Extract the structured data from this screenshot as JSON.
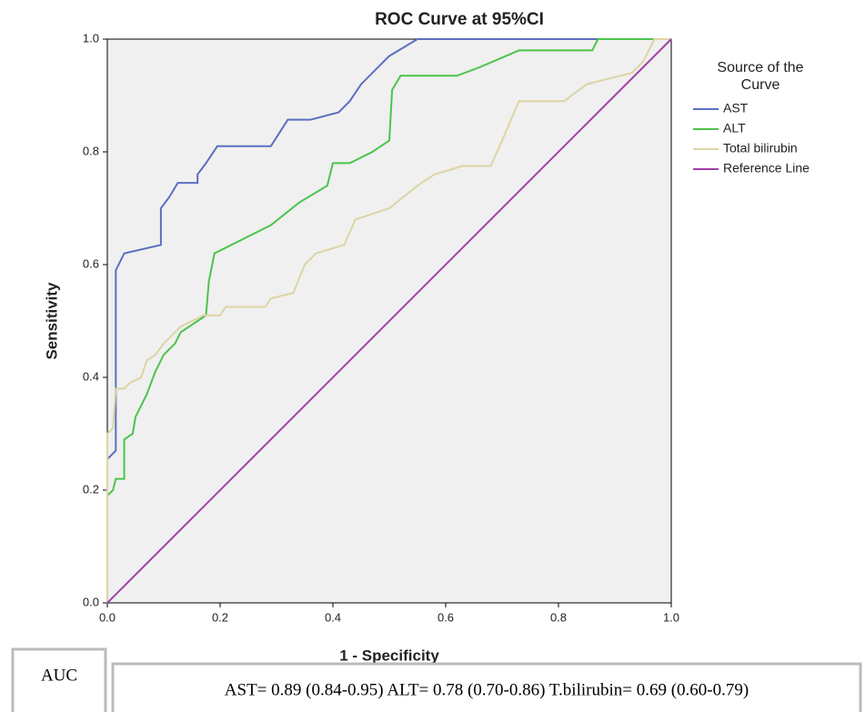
{
  "chart_data": {
    "type": "line",
    "title": "ROC Curve at 95%CI",
    "xlabel": "1 - Specificity",
    "ylabel": "Sensitivity",
    "legend_title": "Source of the Curve",
    "legend_position": "right",
    "xlim": [
      0,
      1
    ],
    "ylim": [
      0,
      1
    ],
    "xticks": [
      {
        "value": 0,
        "label": "0.0"
      },
      0.2,
      0.4,
      0.6,
      0.8,
      {
        "value": 1,
        "label": "1.0"
      }
    ],
    "yticks": [
      {
        "value": 0,
        "label": "0.0"
      },
      0.2,
      0.4,
      0.6,
      0.8,
      {
        "value": 1,
        "label": "1.0"
      }
    ],
    "grid": false,
    "series": [
      {
        "name": "AST",
        "color": "#5b6fc2",
        "x": [
          0,
          0,
          0.015,
          0.015,
          0.03,
          0.095,
          0.095,
          0.11,
          0.125,
          0.16,
          0.16,
          0.175,
          0.195,
          0.29,
          0.32,
          0.36,
          0.41,
          0.43,
          0.45,
          0.5,
          0.55,
          1.0
        ],
        "values": [
          0,
          0.255,
          0.27,
          0.59,
          0.62,
          0.635,
          0.7,
          0.72,
          0.745,
          0.745,
          0.76,
          0.78,
          0.81,
          0.81,
          0.857,
          0.857,
          0.87,
          0.89,
          0.92,
          0.97,
          1.0,
          1.0
        ]
      },
      {
        "name": "ALT",
        "color": "#4cc44c",
        "x": [
          0,
          0,
          0.01,
          0.015,
          0.03,
          0.03,
          0.045,
          0.05,
          0.07,
          0.085,
          0.1,
          0.12,
          0.13,
          0.16,
          0.175,
          0.18,
          0.19,
          0.25,
          0.29,
          0.34,
          0.39,
          0.4,
          0.43,
          0.47,
          0.5,
          0.505,
          0.52,
          0.62,
          0.66,
          0.73,
          0.86,
          0.87,
          1.0
        ],
        "values": [
          0,
          0.19,
          0.2,
          0.22,
          0.22,
          0.29,
          0.3,
          0.33,
          0.37,
          0.41,
          0.44,
          0.46,
          0.48,
          0.5,
          0.51,
          0.57,
          0.62,
          0.65,
          0.67,
          0.71,
          0.74,
          0.78,
          0.78,
          0.8,
          0.82,
          0.91,
          0.935,
          0.935,
          0.95,
          0.98,
          0.98,
          1.0,
          1.0
        ]
      },
      {
        "name": "Total bilirubin",
        "color": "#ddd4a4",
        "x": [
          0,
          0,
          0.01,
          0.015,
          0.03,
          0.04,
          0.06,
          0.07,
          0.085,
          0.1,
          0.11,
          0.13,
          0.15,
          0.17,
          0.2,
          0.21,
          0.28,
          0.29,
          0.33,
          0.35,
          0.37,
          0.42,
          0.44,
          0.5,
          0.55,
          0.58,
          0.63,
          0.68,
          0.7,
          0.73,
          0.81,
          0.85,
          0.93,
          0.95,
          0.97,
          1.0
        ],
        "values": [
          0,
          0.3,
          0.31,
          0.38,
          0.38,
          0.39,
          0.4,
          0.43,
          0.44,
          0.46,
          0.47,
          0.49,
          0.5,
          0.51,
          0.51,
          0.525,
          0.525,
          0.54,
          0.55,
          0.6,
          0.62,
          0.635,
          0.68,
          0.7,
          0.74,
          0.76,
          0.775,
          0.775,
          0.82,
          0.89,
          0.89,
          0.92,
          0.94,
          0.96,
          1.0,
          1.0
        ]
      },
      {
        "name": "Reference Line",
        "color": "#a040a8",
        "x": [
          0,
          1
        ],
        "values": [
          0,
          1
        ]
      }
    ],
    "annotations": [
      "AUC",
      "AST= 0.89 (0.84-0.95) ALT= 0.78 (0.70-0.86) T.bilirubin=  0.69 (0.60-0.79)"
    ]
  }
}
